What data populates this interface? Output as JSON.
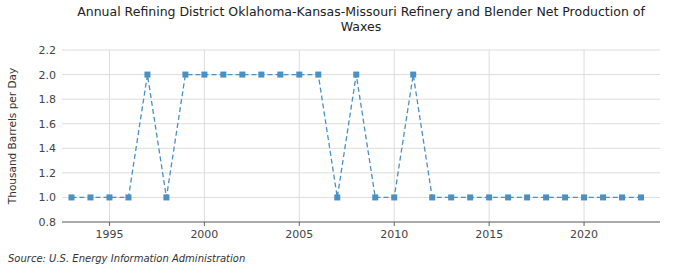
{
  "chart_data": {
    "type": "line",
    "title": "Annual Refining District Oklahoma-Kansas-Missouri Refinery and Blender Net Production of\nWaxes",
    "ylabel": "Thousand Barrels per Day",
    "annotations": [
      "Source: U.S. Energy Information Administration"
    ],
    "x": [
      1993,
      1994,
      1995,
      1996,
      1997,
      1998,
      1999,
      2000,
      2001,
      2002,
      2003,
      2004,
      2005,
      2006,
      2007,
      2008,
      2009,
      2010,
      2011,
      2012,
      2013,
      2014,
      2015,
      2016,
      2017,
      2018,
      2019,
      2020,
      2021,
      2022,
      2023
    ],
    "values": [
      1.0,
      1.0,
      1.0,
      1.0,
      2.0,
      1.0,
      2.0,
      2.0,
      2.0,
      2.0,
      2.0,
      2.0,
      2.0,
      2.0,
      1.0,
      2.0,
      1.0,
      1.0,
      2.0,
      1.0,
      1.0,
      1.0,
      1.0,
      1.0,
      1.0,
      1.0,
      1.0,
      1.0,
      1.0,
      1.0,
      1.0
    ],
    "color": "#4a90c2",
    "marker": "square",
    "line_style": "dashed",
    "xlim": [
      1992.5,
      2024
    ],
    "xticks": [
      1995,
      2000,
      2005,
      2010,
      2015,
      2020
    ],
    "ylim": [
      0.8,
      2.2
    ],
    "yticks": [
      0.8,
      {
        "value": 1.0,
        "label": "1.0"
      },
      1.2,
      1.4,
      1.6,
      1.8,
      {
        "value": 2.0,
        "label": "2.0"
      },
      2.2
    ],
    "grid": true
  }
}
